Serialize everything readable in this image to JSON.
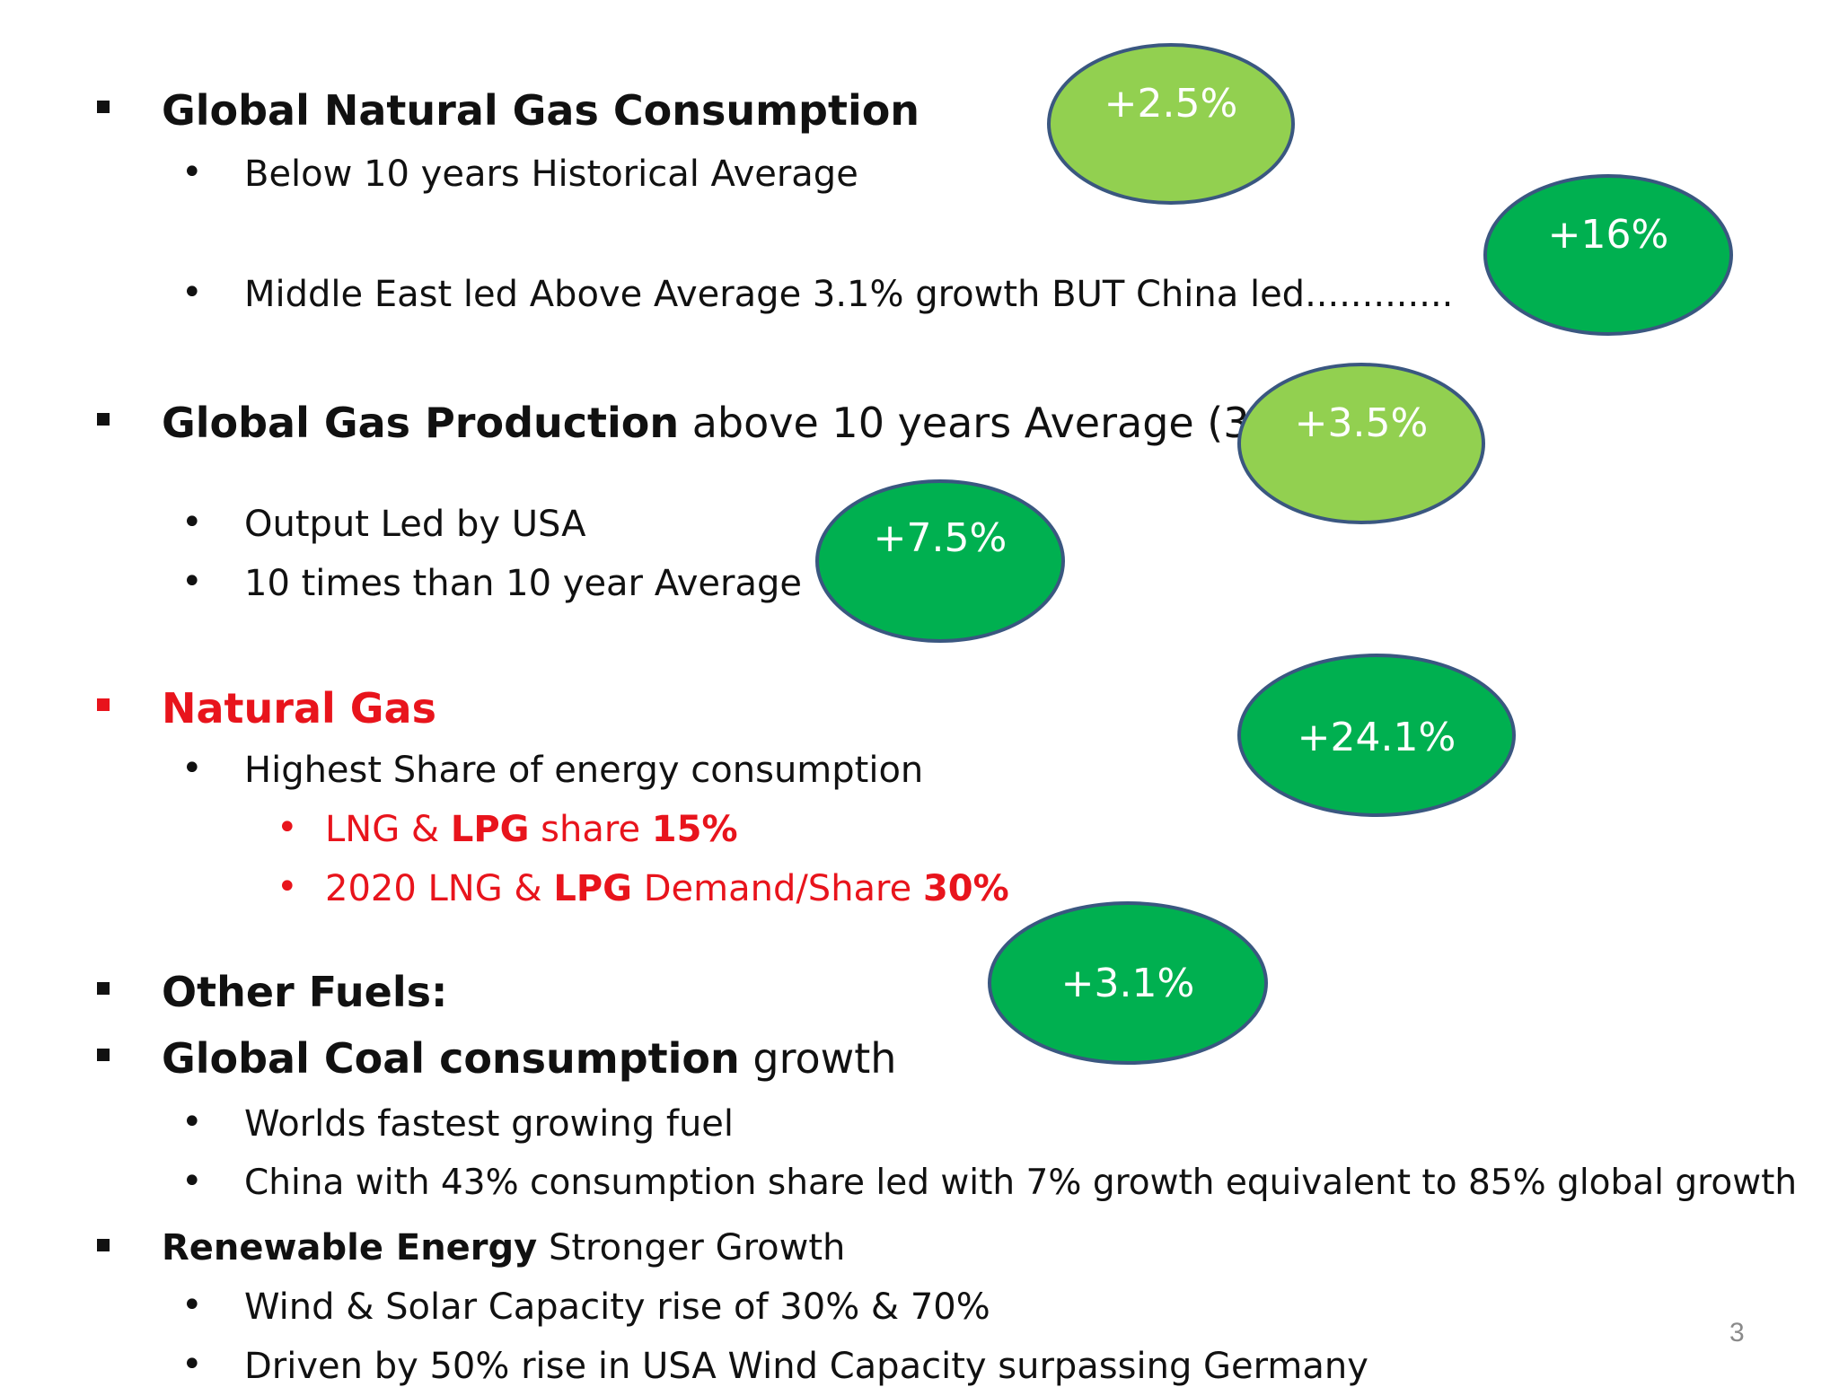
{
  "colors": {
    "light_green": "#92d050",
    "dark_green": "#00b050",
    "ellipse_border": "#3a5780",
    "highlight_red": "#e8141c"
  },
  "s1": {
    "heading": "Global Natural Gas Consumption",
    "b1": "Below 10 years Historical Average",
    "b2": "Middle East led Above Average 3.1% growth BUT China led............."
  },
  "s2": {
    "heading_bold": "Global Gas Production",
    "heading_rest": " above 10 years Average (3%)",
    "b1": "Output Led by USA",
    "b2": "10 times than 10 year Average"
  },
  "s3": {
    "heading": "Natural Gas",
    "b1": "Highest Share of energy consumption",
    "sb1_a": "LNG & ",
    "sb1_b": "LPG",
    "sb1_c": " share ",
    "sb1_d": "15%",
    "sb2_a": "2020 LNG & ",
    "sb2_b": "LPG",
    "sb2_c": " Demand/Share ",
    "sb2_d": "30%"
  },
  "s4": {
    "heading": "Other Fuels:"
  },
  "s5": {
    "heading_bold": "Global Coal consumption",
    "heading_rest": " growth",
    "b1": "Worlds fastest growing fuel",
    "b2": "China with 43% consumption share led with 7% growth equivalent to 85%  global growth"
  },
  "s6": {
    "heading_bold": "Renewable Energy",
    "heading_rest": " Stronger Growth",
    "b1": "Wind & Solar Capacity rise of 30% & 70%",
    "b2": "Driven by 50% rise in USA Wind Capacity surpassing Germany"
  },
  "badges": {
    "e1": "+2.5%",
    "e2": "+16%",
    "e3": "+3.5%",
    "e4": "+7.5%",
    "e5": "+24.1%",
    "e6": "+3.1%"
  },
  "page_number": "3"
}
